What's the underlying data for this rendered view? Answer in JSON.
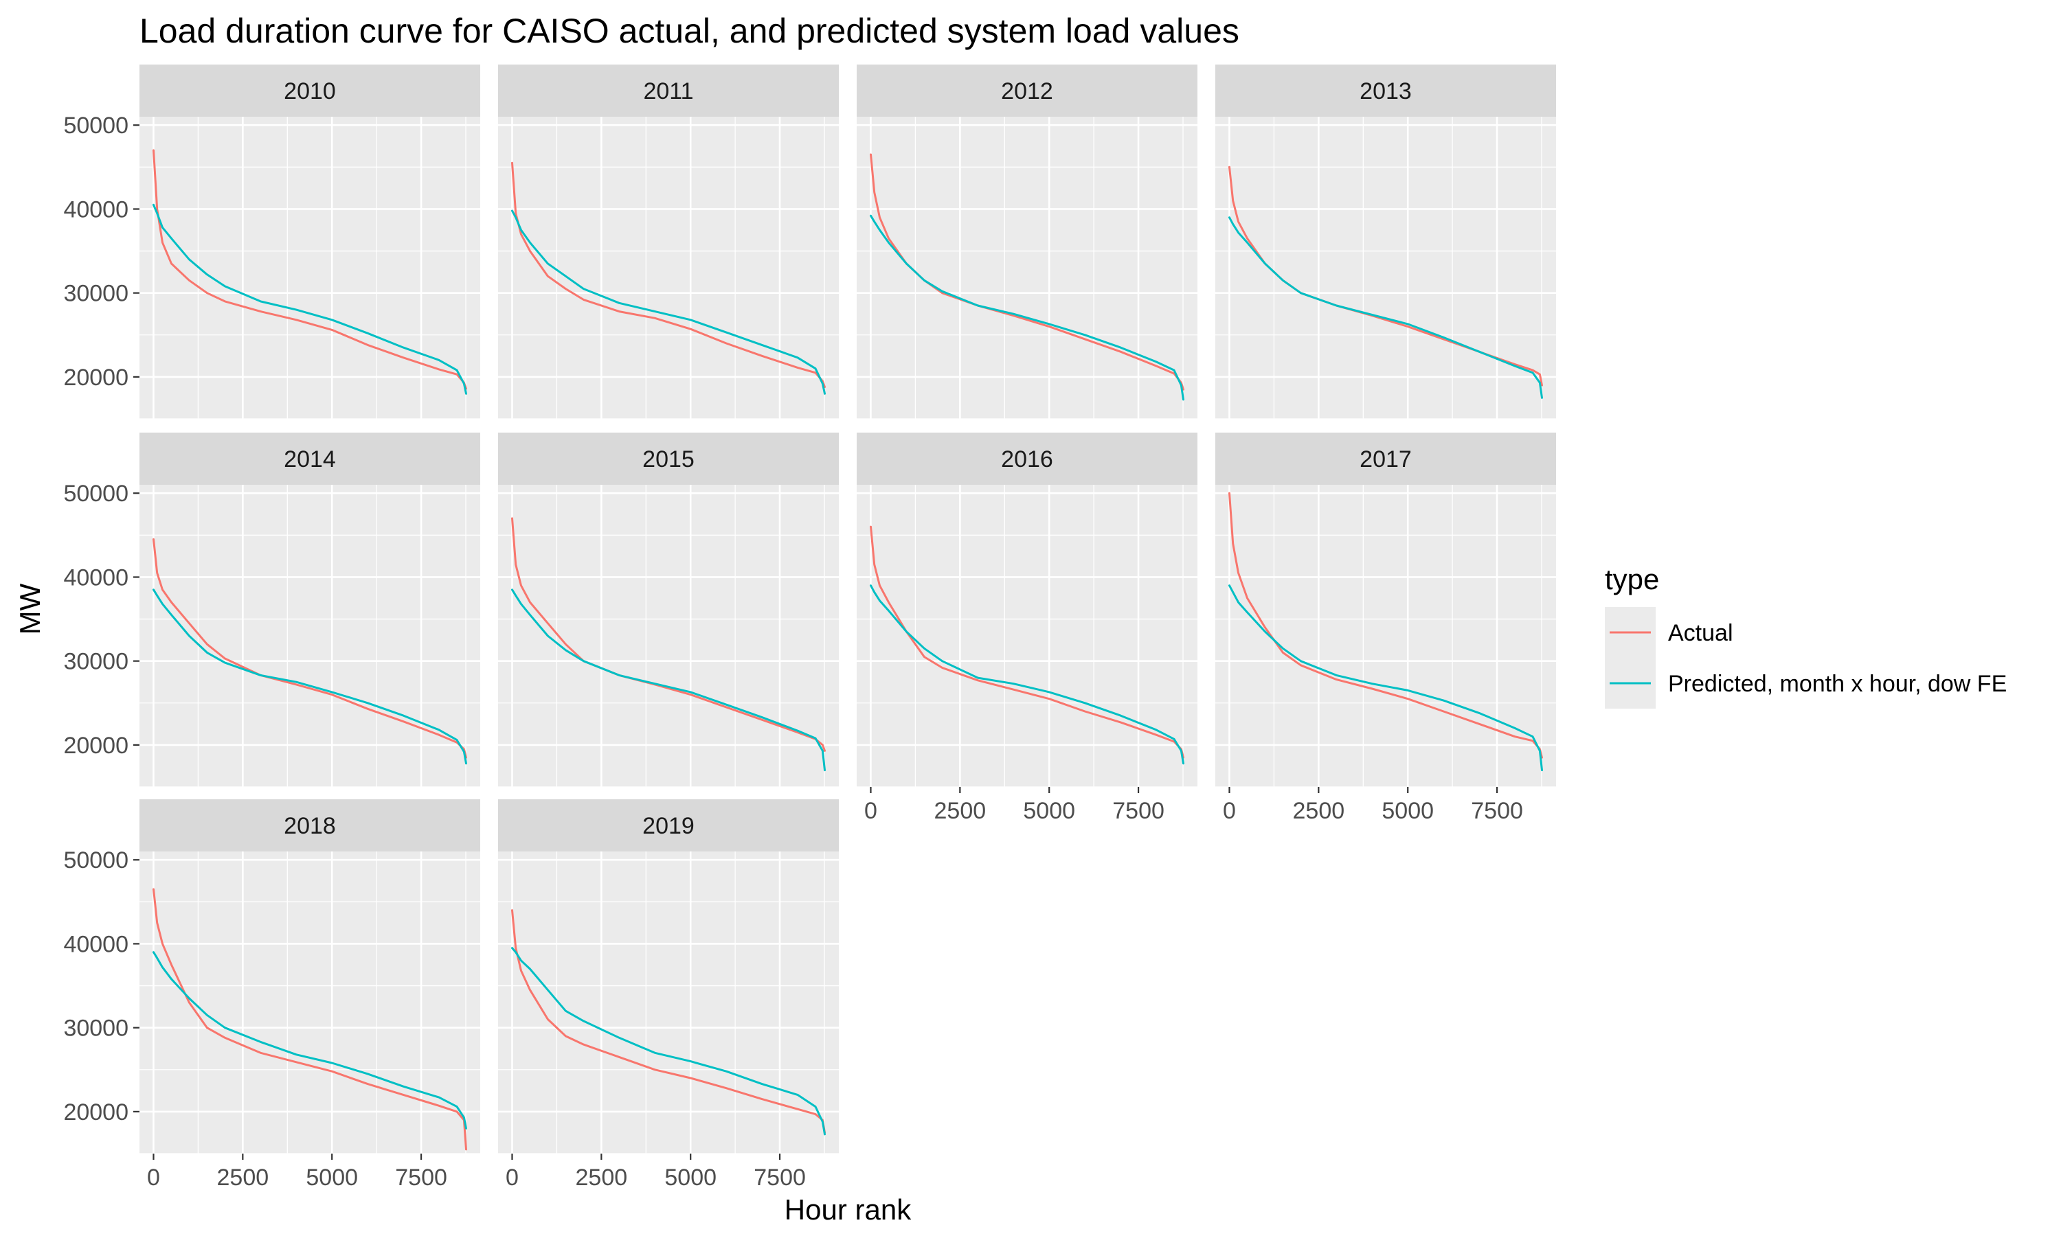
{
  "chart_data": {
    "type": "line",
    "title": "Load duration curve for CAISO actual, and predicted system load values",
    "xlabel": "Hour rank",
    "ylabel": "MW",
    "xlim": [
      0,
      8760
    ],
    "ylim": [
      15000,
      51000
    ],
    "x_ticks": [
      0,
      2500,
      5000,
      7500
    ],
    "x_tick_labels": [
      "0",
      "2500",
      "5000",
      "7500"
    ],
    "y_ticks": [
      20000,
      30000,
      40000,
      50000
    ],
    "y_tick_labels": [
      "20000",
      "30000",
      "40000",
      "50000"
    ],
    "grid": true,
    "layout": "facet_wrap 4 columns",
    "legend": {
      "title": "type",
      "position": "right",
      "entries": [
        {
          "label": "Actual",
          "color": "#F8766D"
        },
        {
          "label": "Predicted, month x hour, dow FE",
          "color": "#00BFC4"
        }
      ]
    },
    "x": [
      0,
      100,
      250,
      500,
      1000,
      1500,
      2000,
      3000,
      4000,
      5000,
      6000,
      7000,
      8000,
      8500,
      8700,
      8760
    ],
    "panels": [
      {
        "label": "2010",
        "series": [
          {
            "name": "Actual",
            "values": [
              47000,
              40000,
              36000,
              33500,
              31500,
              30000,
              29000,
              27800,
              26800,
              25600,
              23800,
              22300,
              20900,
              20300,
              19300,
              18600
            ]
          },
          {
            "name": "Predicted, month x hour, dow FE",
            "values": [
              40500,
              39500,
              37800,
              36500,
              34000,
              32200,
              30800,
              29000,
              28000,
              26800,
              25200,
              23500,
              22000,
              20800,
              19200,
              18000
            ]
          }
        ]
      },
      {
        "label": "2011",
        "series": [
          {
            "name": "Actual",
            "values": [
              45500,
              39500,
              37000,
              35000,
              32000,
              30500,
              29200,
              27800,
              27000,
              25700,
              24000,
              22500,
              21100,
              20500,
              19500,
              18800
            ]
          },
          {
            "name": "Predicted, month x hour, dow FE",
            "values": [
              39800,
              39000,
              37500,
              36000,
              33500,
              32000,
              30500,
              28800,
              27800,
              26800,
              25300,
              23800,
              22300,
              21000,
              19200,
              18000
            ]
          }
        ]
      },
      {
        "label": "2012",
        "series": [
          {
            "name": "Actual",
            "values": [
              46500,
              42000,
              39000,
              36500,
              33500,
              31500,
              30000,
              28500,
              27300,
              26000,
              24500,
              23000,
              21300,
              20400,
              19300,
              18500
            ]
          },
          {
            "name": "Predicted, month x hour, dow FE",
            "values": [
              39200,
              38500,
              37500,
              36000,
              33500,
              31500,
              30200,
              28500,
              27500,
              26300,
              25000,
              23500,
              21800,
              20800,
              19000,
              17300
            ]
          }
        ]
      },
      {
        "label": "2013",
        "series": [
          {
            "name": "Actual",
            "values": [
              45000,
              41000,
              38500,
              36500,
              33500,
              31500,
              30000,
              28500,
              27300,
              26000,
              24500,
              23000,
              21500,
              20800,
              20300,
              19000
            ]
          },
          {
            "name": "Predicted, month x hour, dow FE",
            "values": [
              39000,
              38200,
              37200,
              36000,
              33500,
              31500,
              30000,
              28500,
              27400,
              26300,
              24700,
              23000,
              21300,
              20500,
              19300,
              17500
            ]
          }
        ]
      },
      {
        "label": "2014",
        "series": [
          {
            "name": "Actual",
            "values": [
              44500,
              40500,
              38500,
              37000,
              34500,
              32000,
              30300,
              28300,
              27200,
              26000,
              24300,
              22800,
              21200,
              20300,
              19500,
              18500
            ]
          },
          {
            "name": "Predicted, month x hour, dow FE",
            "values": [
              38500,
              37800,
              36800,
              35500,
              33000,
              31000,
              29800,
              28300,
              27500,
              26300,
              25000,
              23500,
              21800,
              20600,
              19200,
              17800
            ]
          }
        ]
      },
      {
        "label": "2015",
        "series": [
          {
            "name": "Actual",
            "values": [
              47000,
              41500,
              39000,
              37000,
              34500,
              32000,
              30000,
              28300,
              27200,
              26000,
              24500,
              23000,
              21500,
              20700,
              20000,
              19300
            ]
          },
          {
            "name": "Predicted, month x hour, dow FE",
            "values": [
              38500,
              37800,
              36800,
              35500,
              33000,
              31300,
              30000,
              28300,
              27300,
              26300,
              24800,
              23300,
              21700,
              20800,
              19300,
              17000
            ]
          }
        ]
      },
      {
        "label": "2016",
        "series": [
          {
            "name": "Actual",
            "values": [
              46000,
              41500,
              39000,
              37000,
              33500,
              30500,
              29200,
              27700,
              26600,
              25500,
              24000,
              22700,
              21200,
              20400,
              19500,
              18500
            ]
          },
          {
            "name": "Predicted, month x hour, dow FE",
            "values": [
              39000,
              38200,
              37200,
              36000,
              33500,
              31500,
              30000,
              28000,
              27300,
              26300,
              25000,
              23500,
              21800,
              20700,
              19300,
              17800
            ]
          }
        ]
      },
      {
        "label": "2017",
        "series": [
          {
            "name": "Actual",
            "values": [
              50000,
              44000,
              40500,
              37500,
              34000,
              31000,
              29500,
              27800,
              26700,
              25500,
              24000,
              22500,
              21000,
              20500,
              19500,
              18500
            ]
          },
          {
            "name": "Predicted, month x hour, dow FE",
            "values": [
              39000,
              38200,
              37000,
              35800,
              33500,
              31500,
              30000,
              28300,
              27300,
              26500,
              25300,
              23800,
              22000,
              21000,
              19300,
              17000
            ]
          }
        ]
      },
      {
        "label": "2018",
        "series": [
          {
            "name": "Actual",
            "values": [
              46500,
              42500,
              40000,
              37500,
              33000,
              30000,
              28800,
              27000,
              25900,
              24800,
              23300,
              22000,
              20700,
              20000,
              19000,
              15500
            ]
          },
          {
            "name": "Predicted, month x hour, dow FE",
            "values": [
              39000,
              38300,
              37200,
              35800,
              33500,
              31500,
              30000,
              28300,
              26800,
              25800,
              24500,
              23000,
              21700,
              20600,
              19300,
              18000
            ]
          }
        ]
      },
      {
        "label": "2019",
        "series": [
          {
            "name": "Actual",
            "values": [
              44000,
              39500,
              36800,
              34500,
              31000,
              29000,
              28000,
              26500,
              25000,
              24000,
              22800,
              21500,
              20300,
              19700,
              19000,
              17500
            ]
          },
          {
            "name": "Predicted, month x hour, dow FE",
            "values": [
              39500,
              39000,
              38000,
              37000,
              34500,
              32000,
              30800,
              28800,
              27000,
              26000,
              24800,
              23300,
              22000,
              20600,
              18800,
              17300
            ]
          }
        ]
      }
    ]
  }
}
